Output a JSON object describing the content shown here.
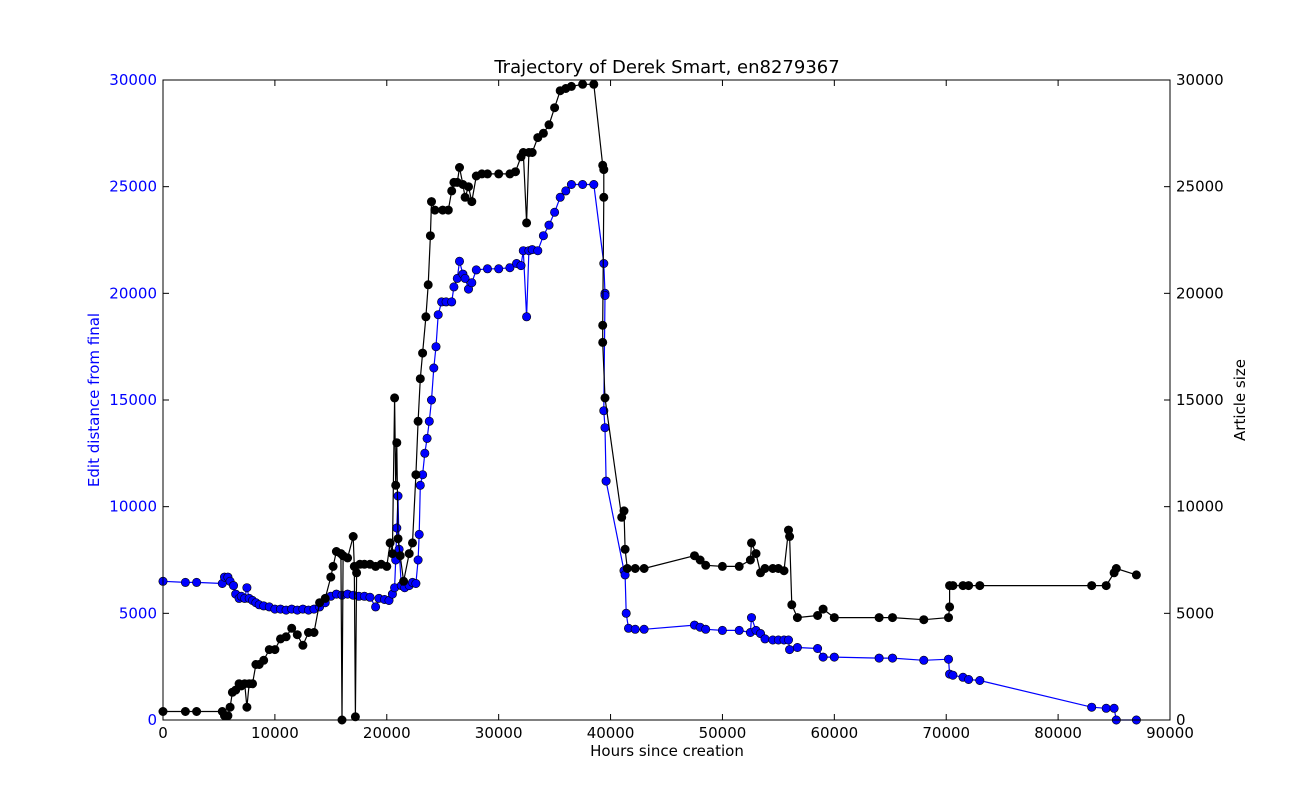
{
  "chart_data": {
    "type": "line",
    "title": "Trajectory of Derek Smart, en8279367",
    "xlabel": "Hours since creation",
    "ylabel_left": "Edit distance from final",
    "ylabel_right": "Article size",
    "xlim": [
      0,
      90000
    ],
    "ylim_left": [
      0,
      30000
    ],
    "ylim_right": [
      0,
      30000
    ],
    "x_ticks": [
      "0",
      "10000",
      "20000",
      "30000",
      "40000",
      "50000",
      "60000",
      "70000",
      "80000",
      "90000"
    ],
    "y_ticks_left": [
      "0",
      "5000",
      "10000",
      "15000",
      "20000",
      "25000",
      "30000"
    ],
    "y_ticks_right": [
      "0",
      "5000",
      "10000",
      "15000",
      "20000",
      "25000",
      "30000"
    ],
    "grid": false,
    "colors": {
      "left_series": "#0000ff",
      "right_series": "#000000",
      "left_axis_text": "#0000ff"
    },
    "series": [
      {
        "axis": "left",
        "values": [
          [
            0,
            6500
          ],
          [
            2000,
            6450
          ],
          [
            3000,
            6450
          ],
          [
            5300,
            6400
          ],
          [
            5500,
            6700
          ],
          [
            5800,
            6700
          ],
          [
            6000,
            6500
          ],
          [
            6300,
            6300
          ],
          [
            6500,
            5900
          ],
          [
            6800,
            5700
          ],
          [
            7000,
            5800
          ],
          [
            7300,
            5700
          ],
          [
            7500,
            6200
          ],
          [
            7700,
            5700
          ],
          [
            8000,
            5600
          ],
          [
            8300,
            5500
          ],
          [
            8600,
            5400
          ],
          [
            9000,
            5350
          ],
          [
            9500,
            5300
          ],
          [
            10000,
            5200
          ],
          [
            10500,
            5200
          ],
          [
            11000,
            5150
          ],
          [
            11500,
            5200
          ],
          [
            12000,
            5150
          ],
          [
            12500,
            5200
          ],
          [
            13000,
            5150
          ],
          [
            13500,
            5200
          ],
          [
            14000,
            5300
          ],
          [
            14500,
            5500
          ],
          [
            15000,
            5800
          ],
          [
            15500,
            5900
          ],
          [
            16000,
            5850
          ],
          [
            16500,
            5900
          ],
          [
            17000,
            5850
          ],
          [
            17500,
            5800
          ],
          [
            18000,
            5800
          ],
          [
            18500,
            5750
          ],
          [
            19000,
            5300
          ],
          [
            19300,
            5700
          ],
          [
            19800,
            5650
          ],
          [
            20200,
            5600
          ],
          [
            20500,
            5900
          ],
          [
            20700,
            6200
          ],
          [
            20800,
            7500
          ],
          [
            20900,
            9000
          ],
          [
            21000,
            10500
          ],
          [
            21100,
            8000
          ],
          [
            21300,
            6300
          ],
          [
            21600,
            6200
          ],
          [
            22000,
            6300
          ],
          [
            22300,
            6450
          ],
          [
            22600,
            6400
          ],
          [
            22800,
            7500
          ],
          [
            22900,
            8700
          ],
          [
            23000,
            11000
          ],
          [
            23200,
            11500
          ],
          [
            23400,
            12500
          ],
          [
            23600,
            13200
          ],
          [
            23800,
            14000
          ],
          [
            24000,
            15000
          ],
          [
            24200,
            16500
          ],
          [
            24400,
            17500
          ],
          [
            24600,
            19000
          ],
          [
            24900,
            19600
          ],
          [
            25300,
            19600
          ],
          [
            25800,
            19600
          ],
          [
            26000,
            20300
          ],
          [
            26300,
            20700
          ],
          [
            26500,
            21500
          ],
          [
            26800,
            20900
          ],
          [
            27000,
            20700
          ],
          [
            27300,
            20200
          ],
          [
            27600,
            20500
          ],
          [
            28000,
            21100
          ],
          [
            29000,
            21150
          ],
          [
            30000,
            21150
          ],
          [
            31000,
            21200
          ],
          [
            31600,
            21400
          ],
          [
            32000,
            21300
          ],
          [
            32200,
            22000
          ],
          [
            32500,
            18900
          ],
          [
            32700,
            22000
          ],
          [
            33000,
            22050
          ],
          [
            33500,
            22000
          ],
          [
            34000,
            22700
          ],
          [
            34500,
            23200
          ],
          [
            35000,
            23800
          ],
          [
            35500,
            24500
          ],
          [
            36000,
            24800
          ],
          [
            36500,
            25100
          ],
          [
            37500,
            25100
          ],
          [
            38500,
            25100
          ],
          [
            39400,
            21400
          ],
          [
            39500,
            20000
          ],
          [
            39500,
            19900
          ],
          [
            39400,
            14500
          ],
          [
            39500,
            13700
          ],
          [
            39600,
            11200
          ],
          [
            41200,
            7000
          ],
          [
            41300,
            6800
          ],
          [
            41400,
            5000
          ],
          [
            41600,
            4300
          ],
          [
            42200,
            4250
          ],
          [
            43000,
            4250
          ],
          [
            47500,
            4450
          ],
          [
            48000,
            4350
          ],
          [
            48500,
            4250
          ],
          [
            50000,
            4200
          ],
          [
            51500,
            4200
          ],
          [
            52500,
            4100
          ],
          [
            52600,
            4800
          ],
          [
            53000,
            4200
          ],
          [
            53400,
            4050
          ],
          [
            53800,
            3800
          ],
          [
            54500,
            3750
          ],
          [
            55000,
            3750
          ],
          [
            55500,
            3750
          ],
          [
            55900,
            3750
          ],
          [
            56000,
            3300
          ],
          [
            56700,
            3400
          ],
          [
            58500,
            3350
          ],
          [
            59000,
            2950
          ],
          [
            60000,
            2950
          ],
          [
            64000,
            2900
          ],
          [
            65200,
            2900
          ],
          [
            68000,
            2800
          ],
          [
            70200,
            2850
          ],
          [
            70300,
            2150
          ],
          [
            70600,
            2100
          ],
          [
            71500,
            2000
          ],
          [
            72000,
            1900
          ],
          [
            73000,
            1850
          ],
          [
            83000,
            600
          ],
          [
            84300,
            550
          ],
          [
            85000,
            550
          ],
          [
            85200,
            0
          ],
          [
            87000,
            0
          ]
        ]
      },
      {
        "axis": "right",
        "values": [
          [
            0,
            400
          ],
          [
            2000,
            400
          ],
          [
            3000,
            400
          ],
          [
            5300,
            400
          ],
          [
            5500,
            200
          ],
          [
            5800,
            200
          ],
          [
            6000,
            600
          ],
          [
            6200,
            1300
          ],
          [
            6500,
            1400
          ],
          [
            6800,
            1700
          ],
          [
            7000,
            1600
          ],
          [
            7300,
            1700
          ],
          [
            7500,
            600
          ],
          [
            7700,
            1700
          ],
          [
            8000,
            1700
          ],
          [
            8300,
            2600
          ],
          [
            8600,
            2600
          ],
          [
            9000,
            2800
          ],
          [
            9500,
            3300
          ],
          [
            10000,
            3300
          ],
          [
            10500,
            3800
          ],
          [
            11000,
            3900
          ],
          [
            11500,
            4300
          ],
          [
            12000,
            4000
          ],
          [
            12500,
            3500
          ],
          [
            13000,
            4100
          ],
          [
            13500,
            4100
          ],
          [
            14000,
            5500
          ],
          [
            14500,
            5700
          ],
          [
            15000,
            6700
          ],
          [
            15200,
            7200
          ],
          [
            15500,
            7900
          ],
          [
            15900,
            7800
          ],
          [
            16000,
            0
          ],
          [
            16100,
            7700
          ],
          [
            16500,
            7600
          ],
          [
            17000,
            8600
          ],
          [
            17100,
            7200
          ],
          [
            17200,
            150
          ],
          [
            17300,
            6900
          ],
          [
            17600,
            7300
          ],
          [
            18000,
            7300
          ],
          [
            18500,
            7300
          ],
          [
            19000,
            7200
          ],
          [
            19500,
            7300
          ],
          [
            20000,
            7200
          ],
          [
            20300,
            8300
          ],
          [
            20500,
            7800
          ],
          [
            20700,
            15100
          ],
          [
            20800,
            11000
          ],
          [
            20900,
            13000
          ],
          [
            21000,
            8500
          ],
          [
            21200,
            7700
          ],
          [
            21500,
            6500
          ],
          [
            22000,
            7800
          ],
          [
            22300,
            8300
          ],
          [
            22600,
            11500
          ],
          [
            22800,
            14000
          ],
          [
            23000,
            16000
          ],
          [
            23200,
            17200
          ],
          [
            23500,
            18900
          ],
          [
            23700,
            20400
          ],
          [
            23900,
            22700
          ],
          [
            24000,
            24300
          ],
          [
            24300,
            23900
          ],
          [
            25000,
            23900
          ],
          [
            25500,
            23900
          ],
          [
            25800,
            24800
          ],
          [
            26000,
            25200
          ],
          [
            26300,
            25200
          ],
          [
            26500,
            25900
          ],
          [
            26800,
            25100
          ],
          [
            27000,
            24500
          ],
          [
            27300,
            25000
          ],
          [
            27600,
            24300
          ],
          [
            28000,
            25500
          ],
          [
            28500,
            25600
          ],
          [
            29000,
            25600
          ],
          [
            30000,
            25600
          ],
          [
            31000,
            25600
          ],
          [
            31500,
            25700
          ],
          [
            32000,
            26400
          ],
          [
            32200,
            26600
          ],
          [
            32500,
            23300
          ],
          [
            32700,
            26600
          ],
          [
            33000,
            26600
          ],
          [
            33500,
            27300
          ],
          [
            34000,
            27500
          ],
          [
            34500,
            27900
          ],
          [
            35000,
            28700
          ],
          [
            35500,
            29500
          ],
          [
            36000,
            29600
          ],
          [
            36500,
            29700
          ],
          [
            37500,
            29800
          ],
          [
            38500,
            29800
          ],
          [
            39300,
            26000
          ],
          [
            39400,
            25800
          ],
          [
            39400,
            24500
          ],
          [
            39300,
            18500
          ],
          [
            39300,
            17700
          ],
          [
            39500,
            15100
          ],
          [
            41000,
            9500
          ],
          [
            41200,
            9800
          ],
          [
            41300,
            8000
          ],
          [
            41500,
            7100
          ],
          [
            42200,
            7100
          ],
          [
            43000,
            7100
          ],
          [
            47500,
            7700
          ],
          [
            48000,
            7500
          ],
          [
            48500,
            7250
          ],
          [
            50000,
            7200
          ],
          [
            51500,
            7200
          ],
          [
            52500,
            7500
          ],
          [
            52600,
            8300
          ],
          [
            53000,
            7800
          ],
          [
            53400,
            6900
          ],
          [
            53800,
            7100
          ],
          [
            54500,
            7100
          ],
          [
            55000,
            7100
          ],
          [
            55500,
            7000
          ],
          [
            55900,
            8900
          ],
          [
            56000,
            8600
          ],
          [
            56200,
            5400
          ],
          [
            56700,
            4800
          ],
          [
            58500,
            4900
          ],
          [
            59000,
            5200
          ],
          [
            60000,
            4800
          ],
          [
            64000,
            4800
          ],
          [
            65200,
            4800
          ],
          [
            68000,
            4700
          ],
          [
            70200,
            4800
          ],
          [
            70300,
            5300
          ],
          [
            70300,
            6300
          ],
          [
            70600,
            6300
          ],
          [
            71500,
            6300
          ],
          [
            72000,
            6300
          ],
          [
            73000,
            6300
          ],
          [
            83000,
            6300
          ],
          [
            84300,
            6300
          ],
          [
            85000,
            6900
          ],
          [
            85200,
            7100
          ],
          [
            87000,
            6800
          ]
        ]
      }
    ]
  }
}
